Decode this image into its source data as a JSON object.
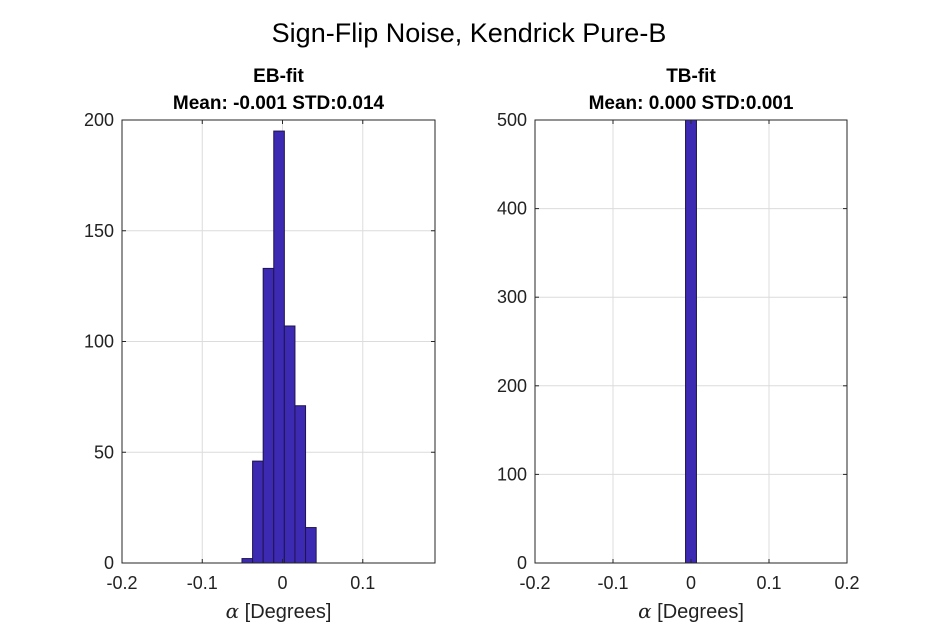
{
  "figure": {
    "suptitle": "Sign-Flip Noise, Kendrick Pure-B"
  },
  "chart_data": [
    {
      "type": "histogram",
      "title_line1": "EB-fit",
      "title_line2": "Mean: -0.001 STD:0.014",
      "xlabel_symbol": "α",
      "xlabel_text": " [Degrees]",
      "ylabel": "",
      "xlim": [
        -0.2,
        0.19
      ],
      "ylim": [
        0,
        200
      ],
      "xticks": [
        -0.2,
        -0.1,
        0,
        0.1
      ],
      "xtick_labels": [
        "-0.2",
        "-0.1",
        "0",
        "0.1"
      ],
      "yticks": [
        0,
        50,
        100,
        150,
        200
      ],
      "ytick_labels": [
        "0",
        "50",
        "100",
        "150",
        "200"
      ],
      "grid": true,
      "bin_width": 0.0132,
      "bins": [
        {
          "left": -0.0505,
          "count": 2
        },
        {
          "left": -0.0373,
          "count": 46
        },
        {
          "left": -0.0241,
          "count": 133
        },
        {
          "left": -0.0109,
          "count": 195
        },
        {
          "left": 0.0023,
          "count": 107
        },
        {
          "left": 0.0155,
          "count": 71
        },
        {
          "left": 0.0287,
          "count": 16
        }
      ]
    },
    {
      "type": "histogram",
      "title_line1": "TB-fit",
      "title_line2": "Mean: 0.000 STD:0.001",
      "xlabel_symbol": "α",
      "xlabel_text": " [Degrees]",
      "ylabel": "",
      "xlim": [
        -0.2,
        0.2
      ],
      "ylim": [
        0,
        500
      ],
      "xticks": [
        -0.2,
        -0.1,
        0,
        0.1,
        0.2
      ],
      "xtick_labels": [
        "-0.2",
        "-0.1",
        "0",
        "0.1",
        "0.2"
      ],
      "yticks": [
        0,
        100,
        200,
        300,
        400,
        500
      ],
      "ytick_labels": [
        "0",
        "100",
        "200",
        "300",
        "400",
        "500"
      ],
      "grid": true,
      "bin_width": 0.014,
      "bins": [
        {
          "left": -0.007,
          "count": 500
        }
      ]
    }
  ]
}
